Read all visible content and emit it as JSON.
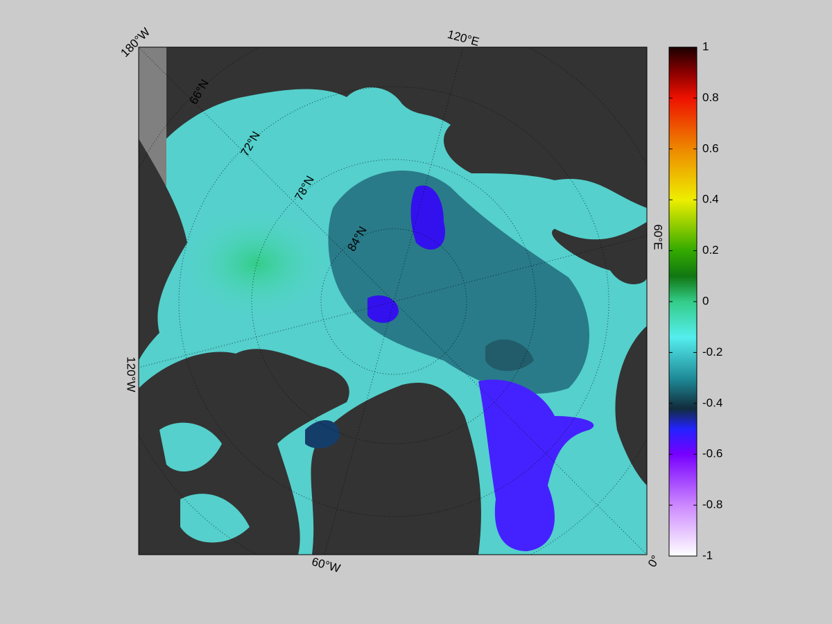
{
  "map": {
    "longitude_labels": [
      "180°W",
      "120°E",
      "60°E",
      "0°",
      "60°W",
      "120°W"
    ],
    "latitude_labels": [
      "66°N",
      "72°N",
      "78°N",
      "84°N"
    ]
  },
  "colorbar": {
    "lim": [
      -1,
      1
    ],
    "ticks": [
      1,
      0.8,
      0.6,
      0.4,
      0.2,
      0,
      -0.2,
      -0.4,
      -0.6,
      -0.8,
      -1
    ]
  }
}
